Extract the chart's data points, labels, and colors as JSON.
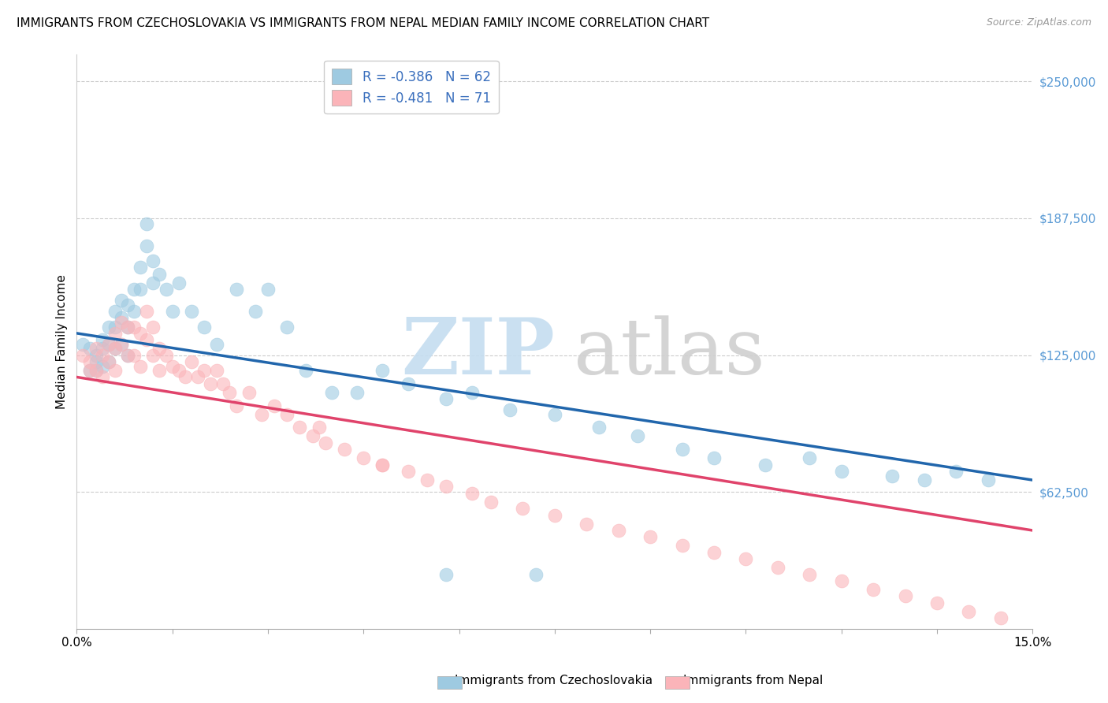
{
  "title": "IMMIGRANTS FROM CZECHOSLOVAKIA VS IMMIGRANTS FROM NEPAL MEDIAN FAMILY INCOME CORRELATION CHART",
  "source": "Source: ZipAtlas.com",
  "ylabel": "Median Family Income",
  "xlim": [
    0.0,
    0.15
  ],
  "ylim": [
    0,
    262500
  ],
  "legend1_label": "R = -0.386   N = 62",
  "legend2_label": "R = -0.481   N = 71",
  "series1_color": "#9ecae1",
  "series2_color": "#fbb4b9",
  "line1_color": "#2166ac",
  "line2_color": "#e0436b",
  "background_color": "#ffffff",
  "title_fontsize": 11,
  "series1_name": "Immigrants from Czechoslovakia",
  "series2_name": "Immigrants from Nepal",
  "czecho_x": [
    0.001,
    0.002,
    0.002,
    0.003,
    0.003,
    0.003,
    0.004,
    0.004,
    0.004,
    0.005,
    0.005,
    0.005,
    0.006,
    0.006,
    0.006,
    0.007,
    0.007,
    0.007,
    0.008,
    0.008,
    0.008,
    0.009,
    0.009,
    0.01,
    0.01,
    0.011,
    0.011,
    0.012,
    0.012,
    0.013,
    0.014,
    0.015,
    0.016,
    0.018,
    0.02,
    0.022,
    0.025,
    0.028,
    0.03,
    0.033,
    0.036,
    0.04,
    0.044,
    0.048,
    0.052,
    0.058,
    0.062,
    0.068,
    0.075,
    0.082,
    0.088,
    0.095,
    0.1,
    0.108,
    0.115,
    0.12,
    0.128,
    0.133,
    0.138,
    0.143,
    0.058,
    0.072
  ],
  "czecho_y": [
    130000,
    128000,
    118000,
    125000,
    122000,
    118000,
    132000,
    128000,
    120000,
    138000,
    130000,
    122000,
    145000,
    138000,
    128000,
    150000,
    142000,
    130000,
    148000,
    138000,
    125000,
    155000,
    145000,
    165000,
    155000,
    185000,
    175000,
    168000,
    158000,
    162000,
    155000,
    145000,
    158000,
    145000,
    138000,
    130000,
    155000,
    145000,
    155000,
    138000,
    118000,
    108000,
    108000,
    118000,
    112000,
    105000,
    108000,
    100000,
    98000,
    92000,
    88000,
    82000,
    78000,
    75000,
    78000,
    72000,
    70000,
    68000,
    72000,
    68000,
    25000,
    25000
  ],
  "nepal_x": [
    0.001,
    0.002,
    0.002,
    0.003,
    0.003,
    0.004,
    0.004,
    0.005,
    0.005,
    0.006,
    0.006,
    0.006,
    0.007,
    0.007,
    0.008,
    0.008,
    0.009,
    0.009,
    0.01,
    0.01,
    0.011,
    0.011,
    0.012,
    0.012,
    0.013,
    0.013,
    0.014,
    0.015,
    0.016,
    0.017,
    0.018,
    0.019,
    0.02,
    0.021,
    0.022,
    0.023,
    0.024,
    0.025,
    0.027,
    0.029,
    0.031,
    0.033,
    0.035,
    0.037,
    0.039,
    0.042,
    0.045,
    0.048,
    0.052,
    0.055,
    0.058,
    0.062,
    0.065,
    0.07,
    0.075,
    0.08,
    0.085,
    0.09,
    0.095,
    0.1,
    0.105,
    0.11,
    0.115,
    0.12,
    0.125,
    0.13,
    0.135,
    0.14,
    0.145,
    0.038,
    0.048
  ],
  "nepal_y": [
    125000,
    122000,
    118000,
    128000,
    118000,
    125000,
    115000,
    130000,
    122000,
    135000,
    128000,
    118000,
    140000,
    130000,
    138000,
    125000,
    138000,
    125000,
    135000,
    120000,
    145000,
    132000,
    138000,
    125000,
    128000,
    118000,
    125000,
    120000,
    118000,
    115000,
    122000,
    115000,
    118000,
    112000,
    118000,
    112000,
    108000,
    102000,
    108000,
    98000,
    102000,
    98000,
    92000,
    88000,
    85000,
    82000,
    78000,
    75000,
    72000,
    68000,
    65000,
    62000,
    58000,
    55000,
    52000,
    48000,
    45000,
    42000,
    38000,
    35000,
    32000,
    28000,
    25000,
    22000,
    18000,
    15000,
    12000,
    8000,
    5000,
    92000,
    75000
  ]
}
